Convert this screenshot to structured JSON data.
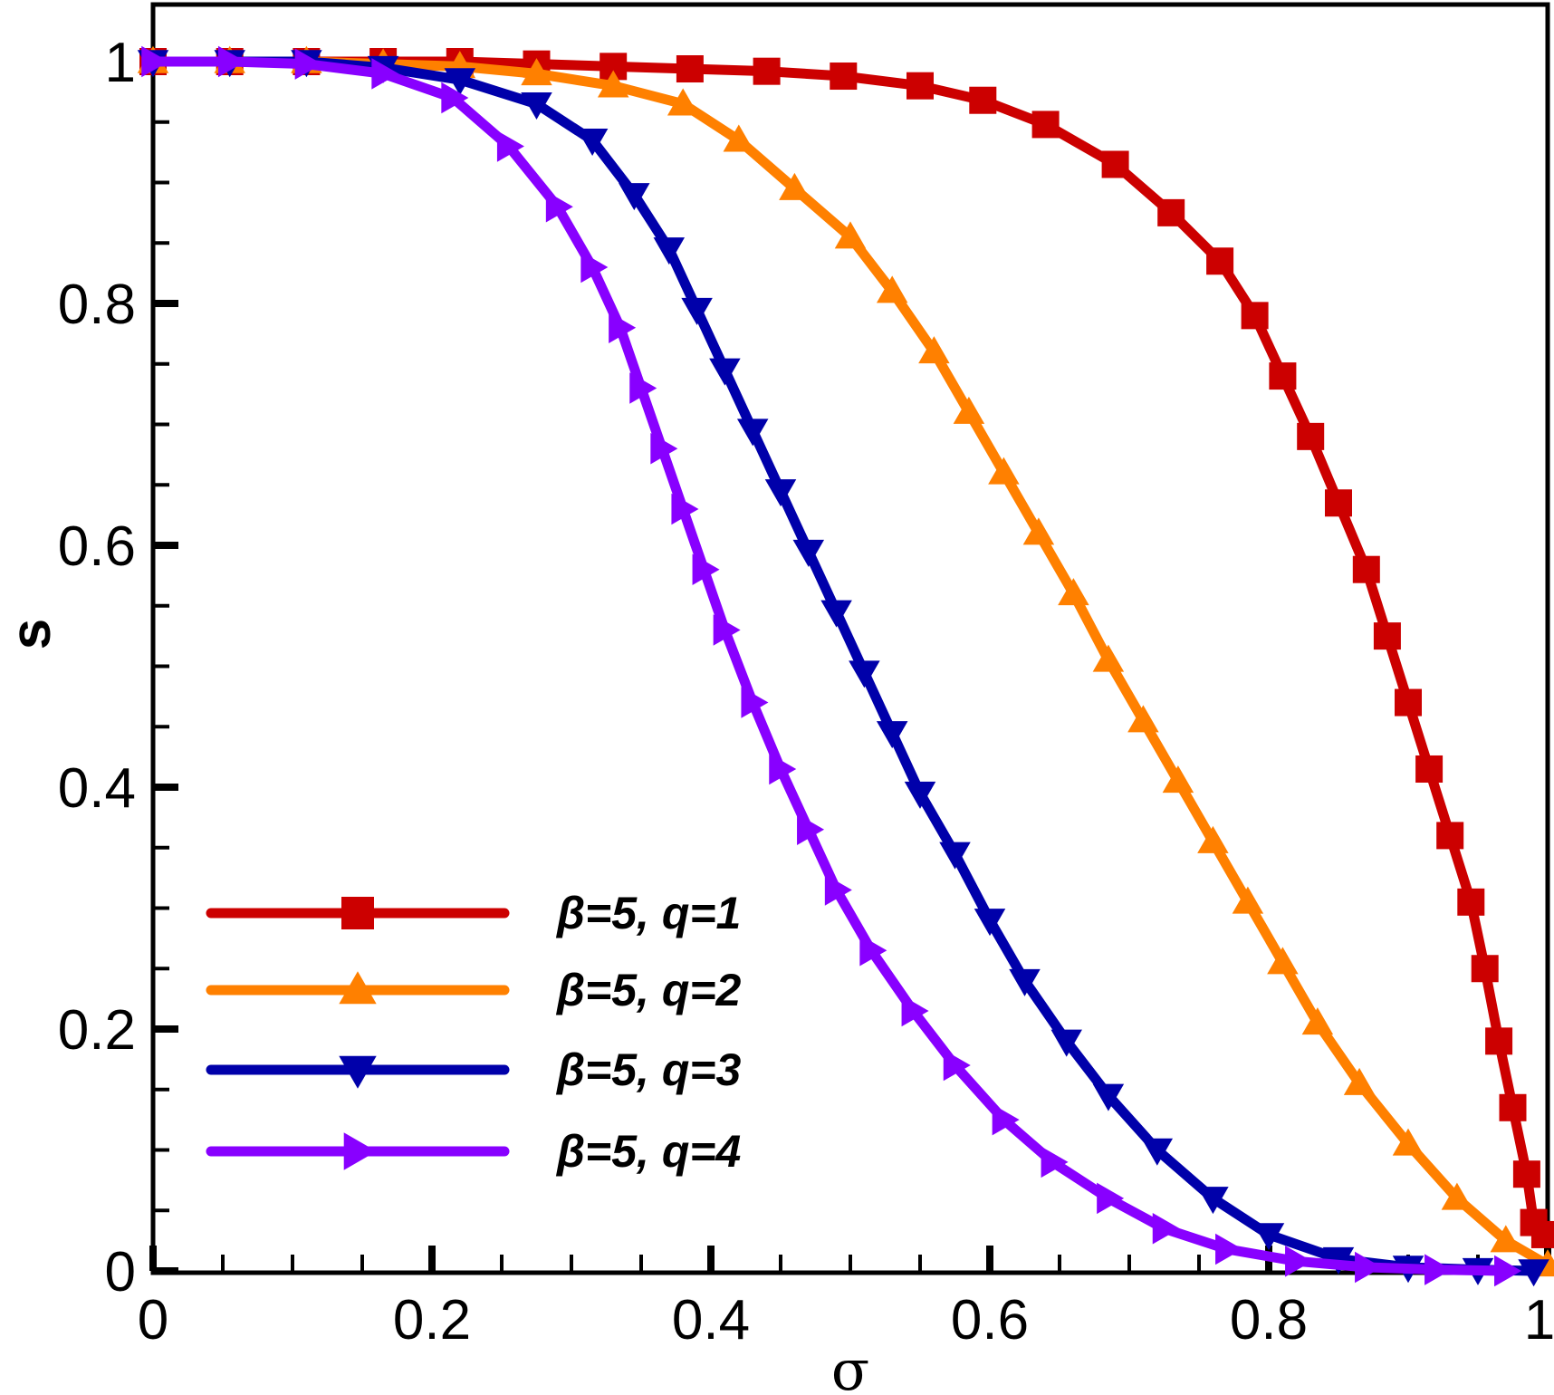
{
  "chart_data": {
    "type": "line",
    "xlabel": "σ",
    "ylabel": "s",
    "xlim": [
      0,
      1
    ],
    "ylim": [
      0,
      1
    ],
    "x_ticks": [
      "0",
      "0.2",
      "0.4",
      "0.6",
      "0.8",
      "1"
    ],
    "y_ticks": [
      "0",
      "0.2",
      "0.4",
      "0.6",
      "0.8",
      "1"
    ],
    "grid": false,
    "legend_position": "bottom-left",
    "x": [
      0,
      0.05,
      0.11,
      0.16,
      0.22,
      0.27,
      0.33,
      0.38,
      0.44,
      0.49,
      0.55,
      0.6,
      0.65,
      0.7,
      0.76,
      0.81,
      0.86,
      0.92,
      0.97,
      1.0
    ],
    "series": [
      {
        "name": "β=5, q=1",
        "color": "#cc0000",
        "marker": "square",
        "x": [
          0,
          0.055,
          0.11,
          0.165,
          0.22,
          0.275,
          0.33,
          0.385,
          0.44,
          0.495,
          0.55,
          0.595,
          0.64,
          0.69,
          0.73,
          0.765,
          0.79,
          0.81,
          0.83,
          0.85,
          0.87,
          0.885,
          0.9,
          0.915,
          0.93,
          0.945,
          0.955,
          0.965,
          0.975,
          0.985,
          0.99,
          0.998
        ],
        "y": [
          1.0,
          1.0,
          1.0,
          1.0,
          1.0,
          0.998,
          0.996,
          0.994,
          0.992,
          0.988,
          0.98,
          0.968,
          0.948,
          0.915,
          0.875,
          0.835,
          0.79,
          0.74,
          0.69,
          0.635,
          0.58,
          0.525,
          0.47,
          0.415,
          0.36,
          0.305,
          0.25,
          0.19,
          0.135,
          0.08,
          0.04,
          0.03
        ]
      },
      {
        "name": "β=5, q=2",
        "color": "#ff8000",
        "marker": "triangle-up",
        "x": [
          0,
          0.055,
          0.11,
          0.165,
          0.22,
          0.275,
          0.33,
          0.38,
          0.42,
          0.46,
          0.5,
          0.53,
          0.56,
          0.585,
          0.61,
          0.635,
          0.66,
          0.685,
          0.71,
          0.735,
          0.76,
          0.785,
          0.81,
          0.835,
          0.865,
          0.9,
          0.935,
          0.97,
          1.0
        ],
        "y": [
          1.0,
          1.0,
          1.0,
          0.998,
          0.996,
          0.99,
          0.98,
          0.965,
          0.935,
          0.895,
          0.855,
          0.81,
          0.76,
          0.71,
          0.66,
          0.61,
          0.56,
          0.505,
          0.455,
          0.405,
          0.355,
          0.305,
          0.255,
          0.205,
          0.155,
          0.105,
          0.06,
          0.025,
          0.005
        ]
      },
      {
        "name": "β=5, q=3",
        "color": "#0000aa",
        "marker": "triangle-down",
        "x": [
          0,
          0.055,
          0.11,
          0.165,
          0.22,
          0.275,
          0.315,
          0.345,
          0.37,
          0.39,
          0.41,
          0.43,
          0.45,
          0.47,
          0.49,
          0.51,
          0.53,
          0.55,
          0.575,
          0.6,
          0.625,
          0.655,
          0.685,
          0.72,
          0.76,
          0.8,
          0.85,
          0.9,
          0.95,
          0.99
        ],
        "y": [
          1.0,
          1.0,
          1.0,
          0.995,
          0.985,
          0.965,
          0.935,
          0.89,
          0.845,
          0.795,
          0.745,
          0.695,
          0.645,
          0.595,
          0.545,
          0.495,
          0.445,
          0.395,
          0.345,
          0.29,
          0.24,
          0.19,
          0.145,
          0.1,
          0.06,
          0.03,
          0.01,
          0.003,
          0.001,
          0.0
        ]
      },
      {
        "name": "β=5, q=4",
        "color": "#8800ff",
        "marker": "triangle-right",
        "x": [
          0,
          0.055,
          0.11,
          0.165,
          0.215,
          0.255,
          0.29,
          0.315,
          0.335,
          0.35,
          0.365,
          0.38,
          0.395,
          0.41,
          0.43,
          0.45,
          0.47,
          0.49,
          0.515,
          0.545,
          0.575,
          0.61,
          0.645,
          0.685,
          0.725,
          0.77,
          0.82,
          0.87,
          0.92,
          0.97
        ],
        "y": [
          1.0,
          1.0,
          0.998,
          0.99,
          0.97,
          0.93,
          0.88,
          0.83,
          0.78,
          0.73,
          0.68,
          0.63,
          0.58,
          0.53,
          0.47,
          0.415,
          0.365,
          0.315,
          0.265,
          0.215,
          0.17,
          0.125,
          0.09,
          0.06,
          0.035,
          0.018,
          0.008,
          0.003,
          0.001,
          0.0
        ]
      }
    ]
  }
}
